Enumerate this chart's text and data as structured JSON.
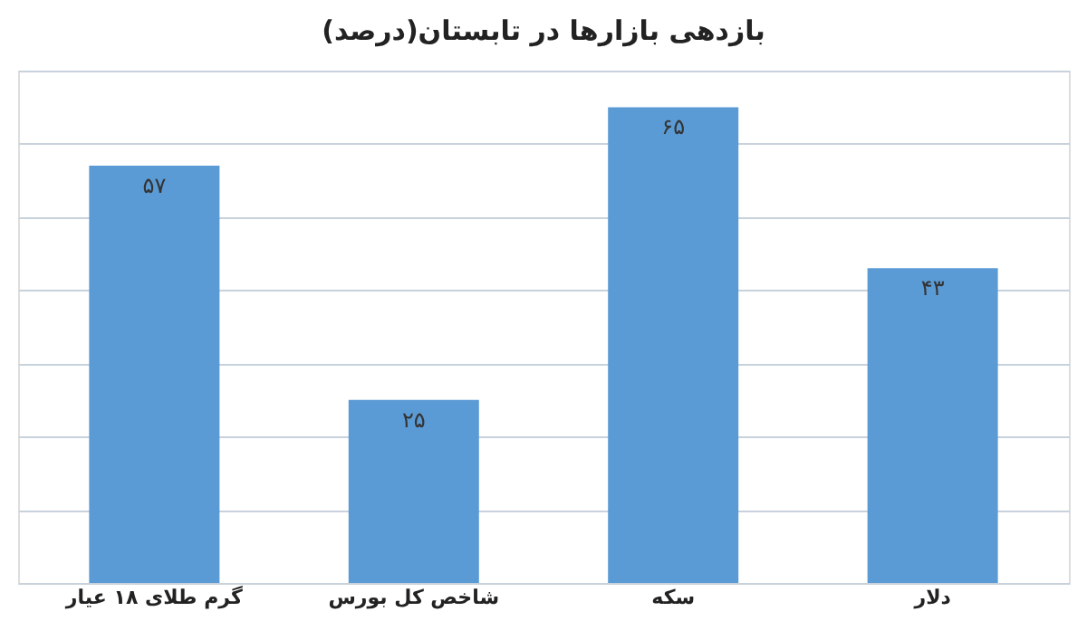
{
  "chart_data": {
    "type": "bar",
    "title": "بازدهی بازارها در تابستان(درصد)",
    "categories": [
      "گرم طلای ۱۸ عیار",
      "شاخص کل بورس",
      "سکه",
      "دلار"
    ],
    "values": [
      57,
      25,
      65,
      43
    ],
    "value_labels": [
      "۵۷",
      "۲۵",
      "۶۵",
      "۴۳"
    ],
    "color": "#5b9bd5",
    "ylim": [
      0,
      70
    ],
    "yticks": [
      {
        "value": 0,
        "label": null
      },
      {
        "value": 10,
        "label": null
      },
      {
        "value": 20,
        "label": null
      },
      {
        "value": 30,
        "label": null
      },
      {
        "value": 40,
        "label": null
      },
      {
        "value": 50,
        "label": null
      },
      {
        "value": 60,
        "label": null
      },
      {
        "value": 70,
        "label": null
      }
    ],
    "grid": "y",
    "tick_labels": "x"
  }
}
